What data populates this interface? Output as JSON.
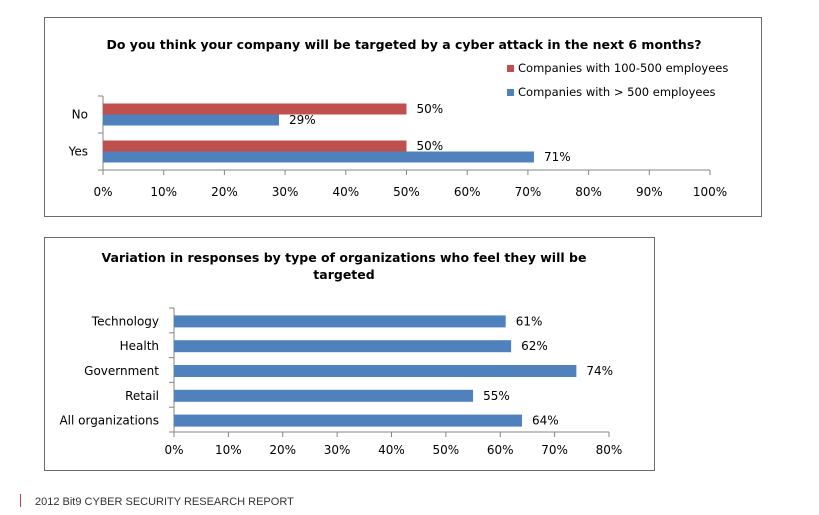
{
  "colors": {
    "red": "#c0504d",
    "blue": "#4f81bd",
    "footer_accent": "#d13b3b"
  },
  "chart_data": [
    {
      "type": "bar",
      "orientation": "horizontal",
      "title": "Do you think your company will be targeted by a cyber attack in the next 6 months?",
      "categories": [
        "No",
        "Yes"
      ],
      "series": [
        {
          "name": "Companies with 100-500 employees",
          "color": "#c0504d",
          "values": [
            50,
            50
          ],
          "labels": [
            "50%",
            "50%"
          ]
        },
        {
          "name": "Companies with > 500 employees",
          "color": "#4f81bd",
          "values": [
            29,
            71
          ],
          "labels": [
            "29%",
            "71%"
          ]
        }
      ],
      "xlim": [
        0,
        100
      ],
      "xticks": [
        "0%",
        "10%",
        "20%",
        "30%",
        "40%",
        "50%",
        "60%",
        "70%",
        "80%",
        "90%",
        "100%"
      ],
      "legend": "top-right"
    },
    {
      "type": "bar",
      "orientation": "horizontal",
      "title": "Variation in responses by type of organizations who feel they will be targeted",
      "categories": [
        "Technology",
        "Health",
        "Government",
        "Retail",
        "All organizations"
      ],
      "series": [
        {
          "color": "#4f81bd",
          "values": [
            61,
            62,
            74,
            55,
            64
          ],
          "labels": [
            "61%",
            "62%",
            "74%",
            "55%",
            "64%"
          ]
        }
      ],
      "xlim": [
        0,
        80
      ],
      "xticks": [
        "0%",
        "10%",
        "20%",
        "30%",
        "40%",
        "50%",
        "60%",
        "70%",
        "80%"
      ]
    }
  ],
  "footer": {
    "text": "2012 Bit9 CYBER SECURITY RESEARCH REPORT"
  }
}
